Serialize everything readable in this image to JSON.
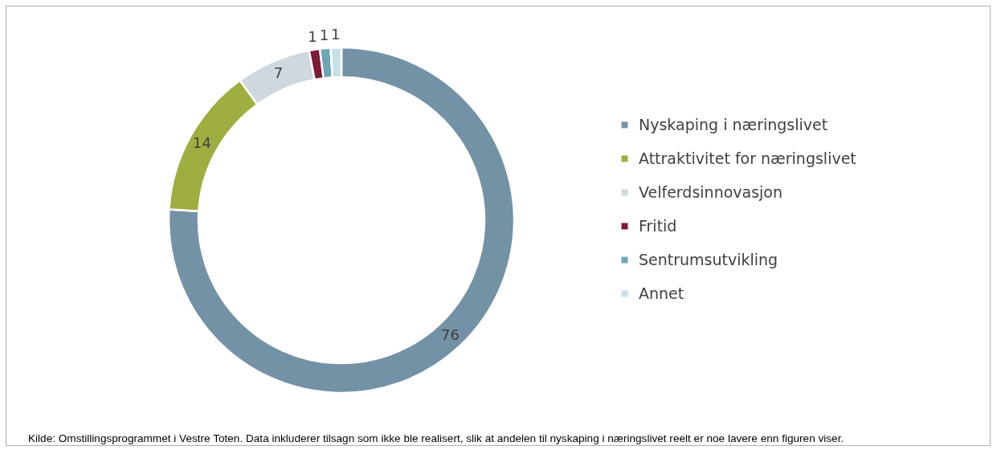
{
  "chart_data": {
    "type": "donut",
    "categories": [
      "Nyskaping i næringslivet",
      "Attraktivitet for næringslivet",
      "Velferdsinnovasjon",
      "Fritid",
      "Sentrumsutvikling",
      "Annet"
    ],
    "values": [
      76,
      14,
      7,
      1,
      1,
      1
    ],
    "colors": [
      "#7492a5",
      "#a0ad40",
      "#d0d8df",
      "#7e1a38",
      "#6fa6b7",
      "#c6e0ea"
    ],
    "data_labels": true,
    "legend": "right",
    "annotations": [
      "Kilde: Omstillingsprogrammet i Vestre Toten. Data inkluderer tilsagn som ikke ble realisert, slik at andelen til nyskaping i  næringslivet reelt er noe lavere enn figuren viser."
    ]
  }
}
